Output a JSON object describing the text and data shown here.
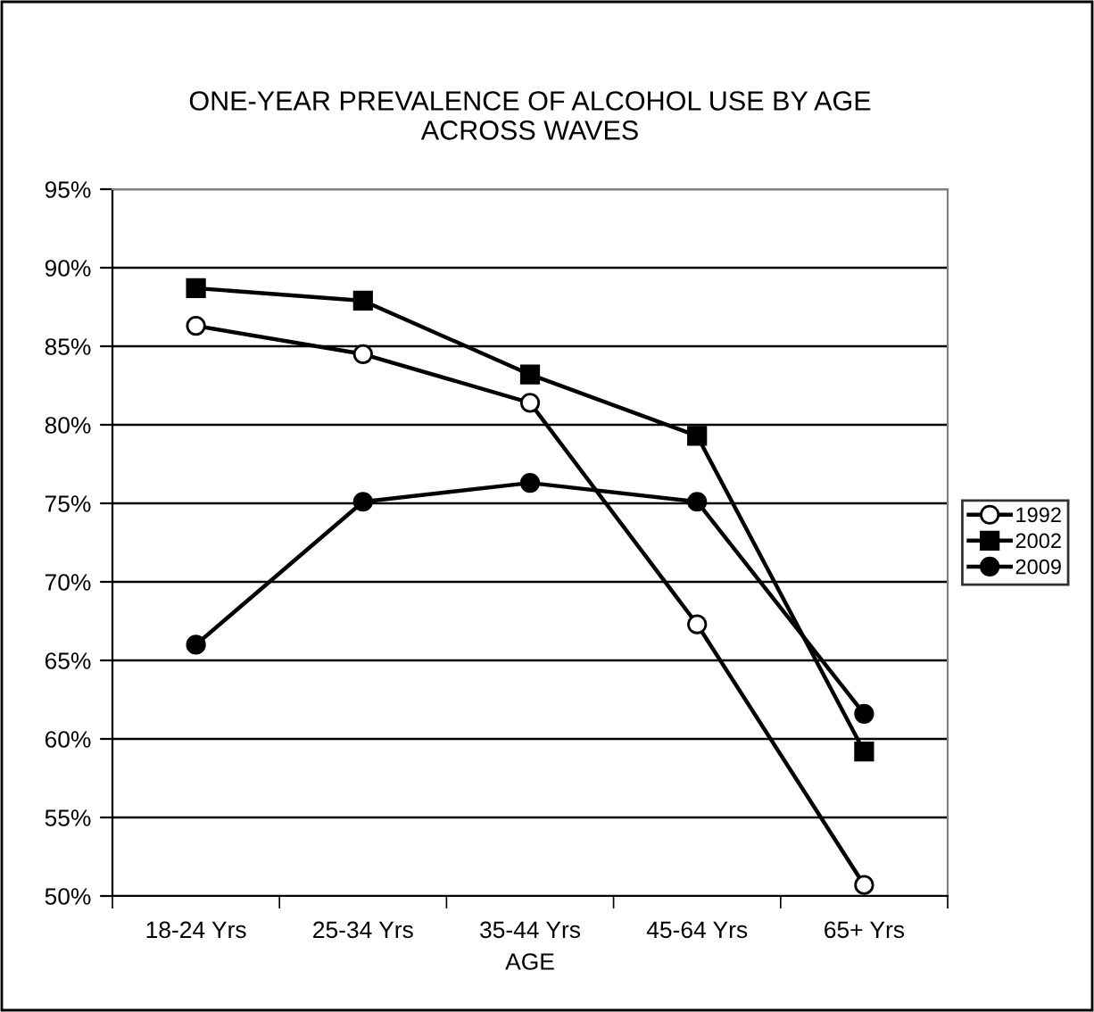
{
  "chart_data": {
    "type": "line",
    "title": "ONE-YEAR PREVALENCE OF ALCOHOL USE BY AGE\nACROSS WAVES",
    "xlabel": "AGE",
    "categories": [
      "18-24 Yrs",
      "25-34 Yrs",
      "35-44 Yrs",
      "45-64 Yrs",
      "65+ Yrs"
    ],
    "series": [
      {
        "name": "1992",
        "color": "#000000",
        "marker": "circle",
        "values": [
          86.3,
          84.5,
          81.4,
          67.3,
          50.7
        ]
      },
      {
        "name": "2002",
        "color": "#000000",
        "marker": "square",
        "values": [
          88.7,
          87.9,
          83.2,
          79.3,
          59.2
        ]
      },
      {
        "name": "2009",
        "color": "#000000",
        "marker": "circle",
        "values": [
          66.0,
          75.1,
          76.3,
          75.1,
          61.6
        ]
      }
    ],
    "ylim": [
      50,
      95
    ],
    "yticks": [
      {
        "value": 50,
        "label": "50%"
      },
      {
        "value": 55,
        "label": "55%"
      },
      {
        "value": 60,
        "label": "60%"
      },
      {
        "value": 65,
        "label": "65%"
      },
      {
        "value": 70,
        "label": "70%"
      },
      {
        "value": 75,
        "label": "75%"
      },
      {
        "value": 80,
        "label": "80%"
      },
      {
        "value": 85,
        "label": "85%"
      },
      {
        "value": 90,
        "label": "90%"
      },
      {
        "value": 95,
        "label": "95%"
      }
    ],
    "grid": "y",
    "legend": "right",
    "line_style": "solid"
  }
}
